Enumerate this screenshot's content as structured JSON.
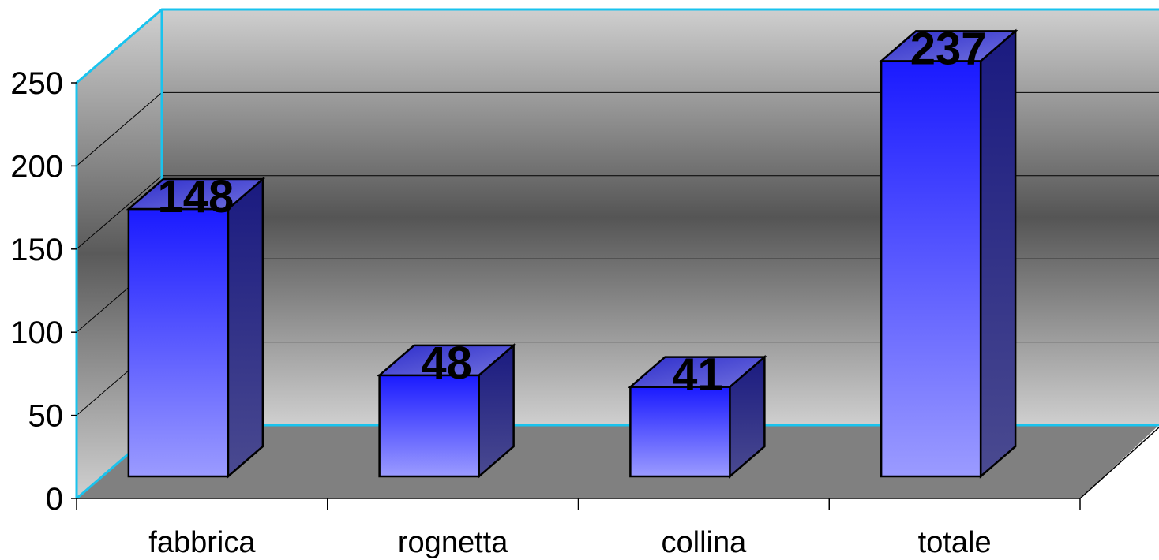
{
  "chart_data": {
    "type": "bar",
    "style": "3d-column",
    "categories": [
      "fabbrica",
      "rognetta",
      "collina",
      "totale"
    ],
    "values": [
      148,
      48,
      41,
      237
    ],
    "data_labels": [
      "148",
      "48",
      "41",
      "237"
    ],
    "title": "",
    "xlabel": "",
    "ylabel": "",
    "ylim": [
      0,
      250
    ],
    "yticks": [
      0,
      50,
      100,
      150,
      200,
      250
    ],
    "ytick_labels": [
      "0",
      "50",
      "100",
      "150",
      "200",
      "250"
    ],
    "grid": true,
    "legend": "none",
    "colors": {
      "bar_front_top": "#1a1aff",
      "bar_front_bottom": "#9b9bff",
      "bar_side": "#2a2a8a",
      "bar_top": "#4a4acc",
      "wall_edge": "#19c3ee",
      "floor": "#808080",
      "wall_dark": "#555555",
      "wall_light": "#c8c8c8"
    }
  }
}
